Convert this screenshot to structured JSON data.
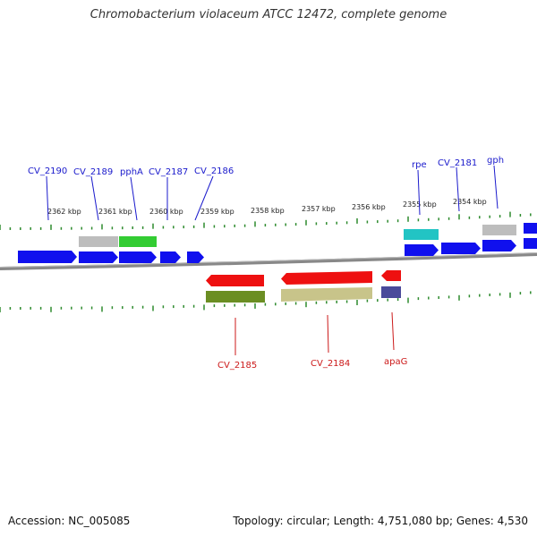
{
  "title": "Chromobacterium violaceum ATCC 12472, complete genome",
  "accession": "Accession: NC_005085",
  "topology": "Topology: circular; Length: 4,751,080 bp; Genes: 4,530",
  "ruler_top_labels": [
    "2362 kbp",
    "2361 kbp",
    "2360 kbp",
    "2359 kbp",
    "2358 kbp",
    "2357 kbp",
    "2356 kbp",
    "2355 kbp",
    "2354 kbp"
  ],
  "colors": {
    "forward_label": "#1a1acc",
    "reverse_label": "#cc1a1a",
    "tick": "#2e8b2e",
    "backbone": "#888888",
    "blue_gene": "#1010ee",
    "red_gene": "#ee1010",
    "gray_gene": "#bdbdbd",
    "green_gene": "#33cc33",
    "cyan_gene": "#22c4c4",
    "olive_gene": "#6b8e23",
    "khaki_gene": "#c8c48a",
    "navy_gene": "#4a4a9a"
  },
  "forward_labels": [
    "CV_2190",
    "CV_2189",
    "pphA",
    "CV_2187",
    "CV_2186",
    "rpe",
    "CV_2181",
    "gph"
  ],
  "reverse_labels": [
    "CV_2185",
    "CV_2184",
    "apaG"
  ]
}
